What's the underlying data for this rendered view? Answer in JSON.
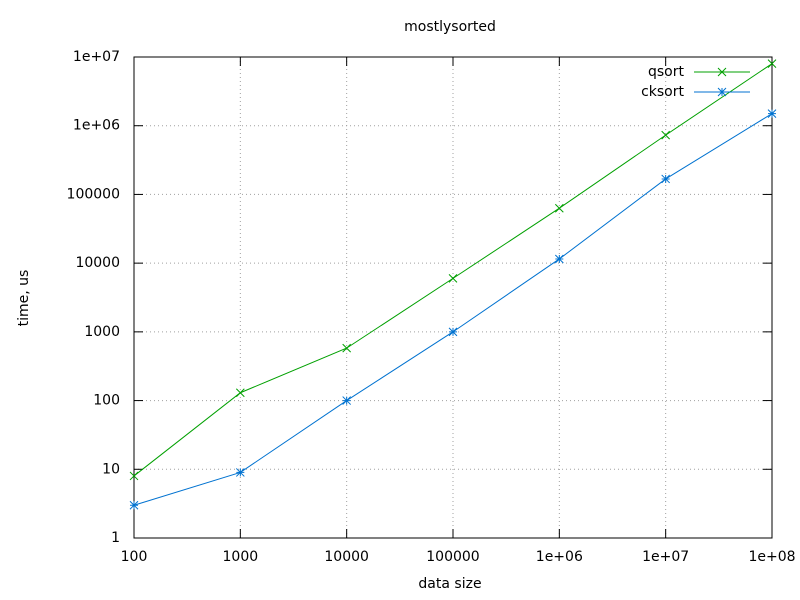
{
  "chart_data": {
    "type": "line",
    "title": "mostlysorted",
    "xlabel": "data size",
    "ylabel": "time, us",
    "x": [
      100,
      1000,
      10000,
      100000,
      1000000,
      10000000,
      100000000
    ],
    "series": [
      {
        "name": "qsort",
        "color": "#00a000",
        "marker": "x",
        "values": [
          8,
          130,
          580,
          6000,
          63000,
          730000,
          8000000
        ]
      },
      {
        "name": "cksort",
        "color": "#0072d0",
        "marker": "*",
        "values": [
          3,
          9,
          100,
          1000,
          11500,
          168000,
          1500000
        ]
      }
    ],
    "log_x": true,
    "log_y": true,
    "xlim": [
      100,
      100000000
    ],
    "xticks": [
      100,
      1000,
      10000,
      100000,
      {
        "value": 1000000,
        "label": "1e+06"
      },
      {
        "value": 10000000,
        "label": "1e+07"
      },
      {
        "value": 100000000,
        "label": "1e+08"
      }
    ],
    "ylim": [
      1,
      10000000
    ],
    "yticks": [
      1,
      10,
      100,
      1000,
      10000,
      100000,
      {
        "value": 1000000,
        "label": "1e+06"
      },
      {
        "value": 10000000,
        "label": "1e+07"
      }
    ],
    "grid": true,
    "legend": "top-right"
  }
}
